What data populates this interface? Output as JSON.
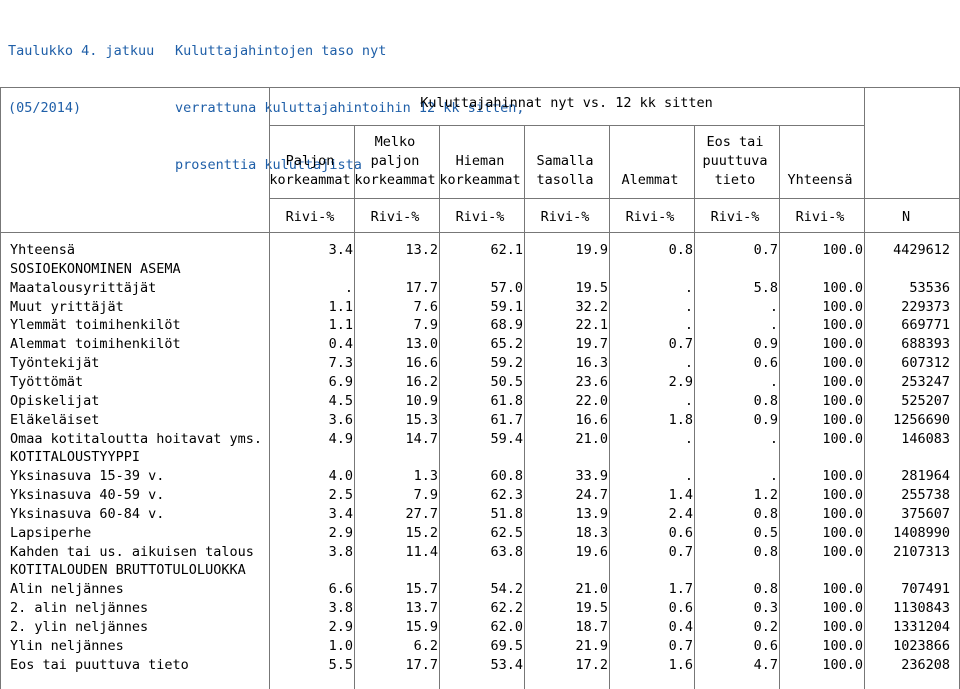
{
  "header": {
    "table_no": "Taulukko 4. jatkuu",
    "period": "(05/2014)",
    "title_lines": [
      "Kuluttajahintojen taso nyt",
      "verrattuna kuluttajahintoihin 12 kk sitten,",
      "prosenttia kuluttajista"
    ]
  },
  "table": {
    "group_header": "Kuluttajahinnat nyt vs. 12 kk sitten",
    "columns": [
      {
        "lines": [
          "",
          "Paljon",
          "korkeammat"
        ]
      },
      {
        "lines": [
          "Melko",
          "paljon",
          "korkeammat"
        ]
      },
      {
        "lines": [
          "",
          "Hieman",
          "korkeammat"
        ]
      },
      {
        "lines": [
          "",
          "Samalla",
          "tasolla"
        ]
      },
      {
        "lines": [
          "",
          "",
          "Alemmat"
        ]
      },
      {
        "lines": [
          "Eos tai",
          "puuttuva",
          "tieto"
        ]
      },
      {
        "lines": [
          "",
          "",
          "Yhteensä"
        ]
      }
    ],
    "units": [
      "Rivi-%",
      "Rivi-%",
      "Rivi-%",
      "Rivi-%",
      "Rivi-%",
      "Rivi-%",
      "Rivi-%",
      "N"
    ],
    "rows": [
      {
        "label": "Yhteensä",
        "values": [
          "3.4",
          "13.2",
          "62.1",
          "19.9",
          "0.8",
          "0.7",
          "100.0",
          "4429612"
        ]
      },
      {
        "label": "SOSIOEKONOMINEN ASEMA",
        "values": []
      },
      {
        "label": "Maatalousyrittäjät",
        "values": [
          ".",
          "17.7",
          "57.0",
          "19.5",
          ".",
          "5.8",
          "100.0",
          "53536"
        ]
      },
      {
        "label": "Muut yrittäjät",
        "values": [
          "1.1",
          "7.6",
          "59.1",
          "32.2",
          ".",
          ".",
          "100.0",
          "229373"
        ]
      },
      {
        "label": "Ylemmät toimihenkilöt",
        "values": [
          "1.1",
          "7.9",
          "68.9",
          "22.1",
          ".",
          ".",
          "100.0",
          "669771"
        ]
      },
      {
        "label": "Alemmat toimihenkilöt",
        "values": [
          "0.4",
          "13.0",
          "65.2",
          "19.7",
          "0.7",
          "0.9",
          "100.0",
          "688393"
        ]
      },
      {
        "label": "Työntekijät",
        "values": [
          "7.3",
          "16.6",
          "59.2",
          "16.3",
          ".",
          "0.6",
          "100.0",
          "607312"
        ]
      },
      {
        "label": "Työttömät",
        "values": [
          "6.9",
          "16.2",
          "50.5",
          "23.6",
          "2.9",
          ".",
          "100.0",
          "253247"
        ]
      },
      {
        "label": "Opiskelijat",
        "values": [
          "4.5",
          "10.9",
          "61.8",
          "22.0",
          ".",
          "0.8",
          "100.0",
          "525207"
        ]
      },
      {
        "label": "Eläkeläiset",
        "values": [
          "3.6",
          "15.3",
          "61.7",
          "16.6",
          "1.8",
          "0.9",
          "100.0",
          "1256690"
        ]
      },
      {
        "label": "Omaa kotitaloutta hoitavat yms.",
        "values": [
          "4.9",
          "14.7",
          "59.4",
          "21.0",
          ".",
          ".",
          "100.0",
          "146083"
        ]
      },
      {
        "label": "KOTITALOUSTYYPPI",
        "values": []
      },
      {
        "label": "Yksinasuva 15-39 v.",
        "values": [
          "4.0",
          "1.3",
          "60.8",
          "33.9",
          ".",
          ".",
          "100.0",
          "281964"
        ]
      },
      {
        "label": "Yksinasuva 40-59 v.",
        "values": [
          "2.5",
          "7.9",
          "62.3",
          "24.7",
          "1.4",
          "1.2",
          "100.0",
          "255738"
        ]
      },
      {
        "label": "Yksinasuva 60-84 v.",
        "values": [
          "3.4",
          "27.7",
          "51.8",
          "13.9",
          "2.4",
          "0.8",
          "100.0",
          "375607"
        ]
      },
      {
        "label": "Lapsiperhe",
        "values": [
          "2.9",
          "15.2",
          "62.5",
          "18.3",
          "0.6",
          "0.5",
          "100.0",
          "1408990"
        ]
      },
      {
        "label": "Kahden tai us. aikuisen talous",
        "values": [
          "3.8",
          "11.4",
          "63.8",
          "19.6",
          "0.7",
          "0.8",
          "100.0",
          "2107313"
        ]
      },
      {
        "label": "KOTITALOUDEN BRUTTOTULOLUOKKA",
        "values": []
      },
      {
        "label": "Alin neljännes",
        "values": [
          "6.6",
          "15.7",
          "54.2",
          "21.0",
          "1.7",
          "0.8",
          "100.0",
          "707491"
        ]
      },
      {
        "label": "2. alin neljännes",
        "values": [
          "3.8",
          "13.7",
          "62.2",
          "19.5",
          "0.6",
          "0.3",
          "100.0",
          "1130843"
        ]
      },
      {
        "label": "2. ylin neljännes",
        "values": [
          "2.9",
          "15.9",
          "62.0",
          "18.7",
          "0.4",
          "0.2",
          "100.0",
          "1331204"
        ]
      },
      {
        "label": "Ylin neljännes",
        "values": [
          "1.0",
          "6.2",
          "69.5",
          "21.9",
          "0.7",
          "0.6",
          "100.0",
          "1023866"
        ]
      },
      {
        "label": "Eos tai puuttuva tieto",
        "values": [
          "5.5",
          "17.7",
          "53.4",
          "17.2",
          "1.6",
          "4.7",
          "100.0",
          "236208"
        ]
      }
    ]
  }
}
